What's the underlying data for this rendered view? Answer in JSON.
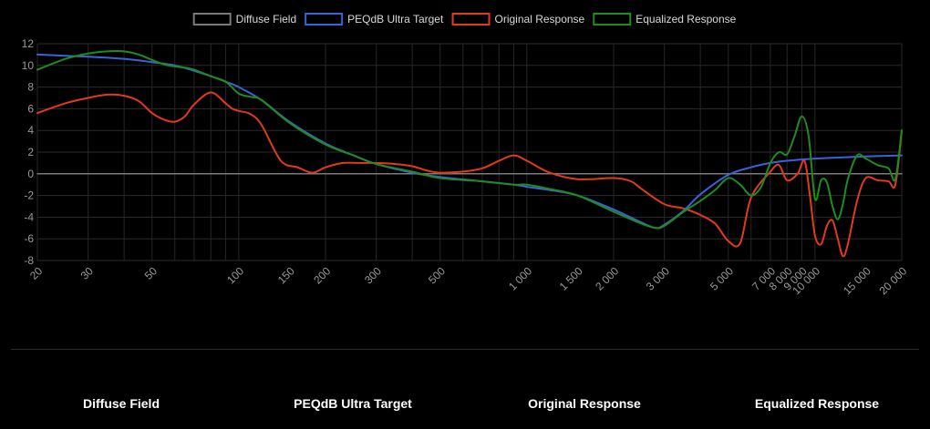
{
  "chart_data": {
    "type": "line",
    "xscale": "log",
    "xlim": [
      20,
      20000
    ],
    "ylim": [
      -8,
      12
    ],
    "yticks": [
      12,
      10,
      8,
      6,
      4,
      2,
      0,
      -2,
      -4,
      -6,
      -8
    ],
    "xticks": [
      {
        "value": 20,
        "label": "20"
      },
      {
        "value": 30,
        "label": "30"
      },
      {
        "value": 50,
        "label": "50"
      },
      {
        "value": 100,
        "label": "100"
      },
      {
        "value": 150,
        "label": "150"
      },
      {
        "value": 200,
        "label": "200"
      },
      {
        "value": 300,
        "label": "300"
      },
      {
        "value": 500,
        "label": "500"
      },
      {
        "value": 1000,
        "label": "1 000"
      },
      {
        "value": 1500,
        "label": "1 500"
      },
      {
        "value": 2000,
        "label": "2 000"
      },
      {
        "value": 3000,
        "label": "3 000"
      },
      {
        "value": 5000,
        "label": "5 000"
      },
      {
        "value": 7000,
        "label": "7 000"
      },
      {
        "value": 8000,
        "label": "8 000"
      },
      {
        "value": 9000,
        "label": "9 000"
      },
      {
        "value": 10000,
        "label": "10 000"
      },
      {
        "value": 15000,
        "label": "15 000"
      },
      {
        "value": 20000,
        "label": "20 000"
      }
    ],
    "grid": true,
    "legend_position": "top",
    "series": [
      {
        "name": "Diffuse Field",
        "color": "#7a7a7a",
        "x": [
          20,
          20000
        ],
        "y": [
          0,
          0
        ]
      },
      {
        "name": "PEQdB Ultra Target",
        "color": "#3a63d9",
        "x": [
          20,
          30,
          40,
          50,
          60,
          70,
          80,
          90,
          100,
          120,
          150,
          200,
          250,
          300,
          400,
          500,
          700,
          900,
          1000,
          1200,
          1500,
          2000,
          2500,
          2800,
          3000,
          3500,
          4000,
          5000,
          6000,
          7000,
          8000,
          10000,
          12000,
          15000,
          20000
        ],
        "y": [
          11.0,
          10.8,
          10.6,
          10.3,
          10.0,
          9.5,
          9.0,
          8.5,
          8.0,
          6.8,
          4.8,
          2.8,
          1.7,
          0.9,
          0.1,
          -0.3,
          -0.7,
          -1.0,
          -1.2,
          -1.5,
          -2.0,
          -3.3,
          -4.5,
          -5.0,
          -4.7,
          -3.4,
          -1.9,
          -0.1,
          0.6,
          1.0,
          1.2,
          1.4,
          1.5,
          1.6,
          1.7
        ]
      },
      {
        "name": "Original Response",
        "color": "#e23a1c",
        "x": [
          20,
          25,
          30,
          35,
          40,
          45,
          50,
          55,
          60,
          65,
          70,
          80,
          90,
          95,
          100,
          110,
          120,
          140,
          160,
          180,
          200,
          230,
          260,
          300,
          350,
          400,
          450,
          500,
          600,
          700,
          800,
          900,
          1000,
          1200,
          1500,
          2000,
          2300,
          2500,
          3000,
          3500,
          4000,
          4500,
          5000,
          5500,
          6000,
          7000,
          7500,
          8000,
          8700,
          9200,
          9600,
          10000,
          10500,
          11000,
          11500,
          12000,
          12500,
          13000,
          14000,
          15000,
          16500,
          18000,
          19000,
          20000
        ],
        "y": [
          5.6,
          6.5,
          7.0,
          7.3,
          7.2,
          6.7,
          5.6,
          5.0,
          4.8,
          5.3,
          6.4,
          7.5,
          6.5,
          6.0,
          5.8,
          5.5,
          4.5,
          1.2,
          0.6,
          0.1,
          0.6,
          1.0,
          1.0,
          1.0,
          0.9,
          0.7,
          0.3,
          0.1,
          0.2,
          0.5,
          1.2,
          1.7,
          1.2,
          0.1,
          -0.5,
          -0.4,
          -0.7,
          -1.4,
          -2.8,
          -3.2,
          -3.8,
          -4.6,
          -6.2,
          -6.4,
          -2.2,
          0.2,
          0.8,
          -0.6,
          0.0,
          1.2,
          -2.0,
          -5.7,
          -6.5,
          -4.8,
          -4.3,
          -6.0,
          -7.6,
          -6.5,
          -2.5,
          -0.4,
          -0.6,
          -0.7,
          -1.0,
          4.0
        ]
      },
      {
        "name": "Equalized Response",
        "color": "#1e8c1e",
        "x": [
          20,
          25,
          30,
          35,
          40,
          45,
          50,
          55,
          60,
          65,
          70,
          80,
          90,
          100,
          110,
          120,
          150,
          200,
          250,
          300,
          400,
          500,
          700,
          900,
          1000,
          1200,
          1500,
          2000,
          2500,
          2800,
          3000,
          3500,
          4000,
          4500,
          5000,
          5500,
          6000,
          6500,
          7000,
          7500,
          8000,
          8500,
          9000,
          9500,
          10000,
          10500,
          11000,
          11500,
          12000,
          12500,
          13000,
          14000,
          15000,
          16500,
          18000,
          19000,
          20000
        ],
        "y": [
          9.6,
          10.6,
          11.1,
          11.3,
          11.3,
          11.0,
          10.5,
          10.1,
          9.9,
          9.8,
          9.6,
          9.0,
          8.5,
          7.4,
          7.1,
          6.8,
          4.7,
          2.7,
          1.7,
          0.9,
          0.2,
          -0.4,
          -0.7,
          -1.0,
          -1.0,
          -1.4,
          -2.0,
          -3.5,
          -4.6,
          -5.0,
          -4.8,
          -3.5,
          -2.5,
          -1.5,
          -0.4,
          -1.0,
          -2.0,
          -1.2,
          1.0,
          2.0,
          1.8,
          3.5,
          5.3,
          3.5,
          -2.3,
          -0.6,
          -0.8,
          -3.0,
          -4.2,
          -2.8,
          -0.5,
          1.7,
          1.4,
          0.8,
          0.5,
          -0.5,
          4.0
        ]
      }
    ]
  },
  "footer": {
    "labels": [
      "Diffuse Field",
      "PEQdB Ultra Target",
      "Original Response",
      "Equalized Response"
    ]
  }
}
